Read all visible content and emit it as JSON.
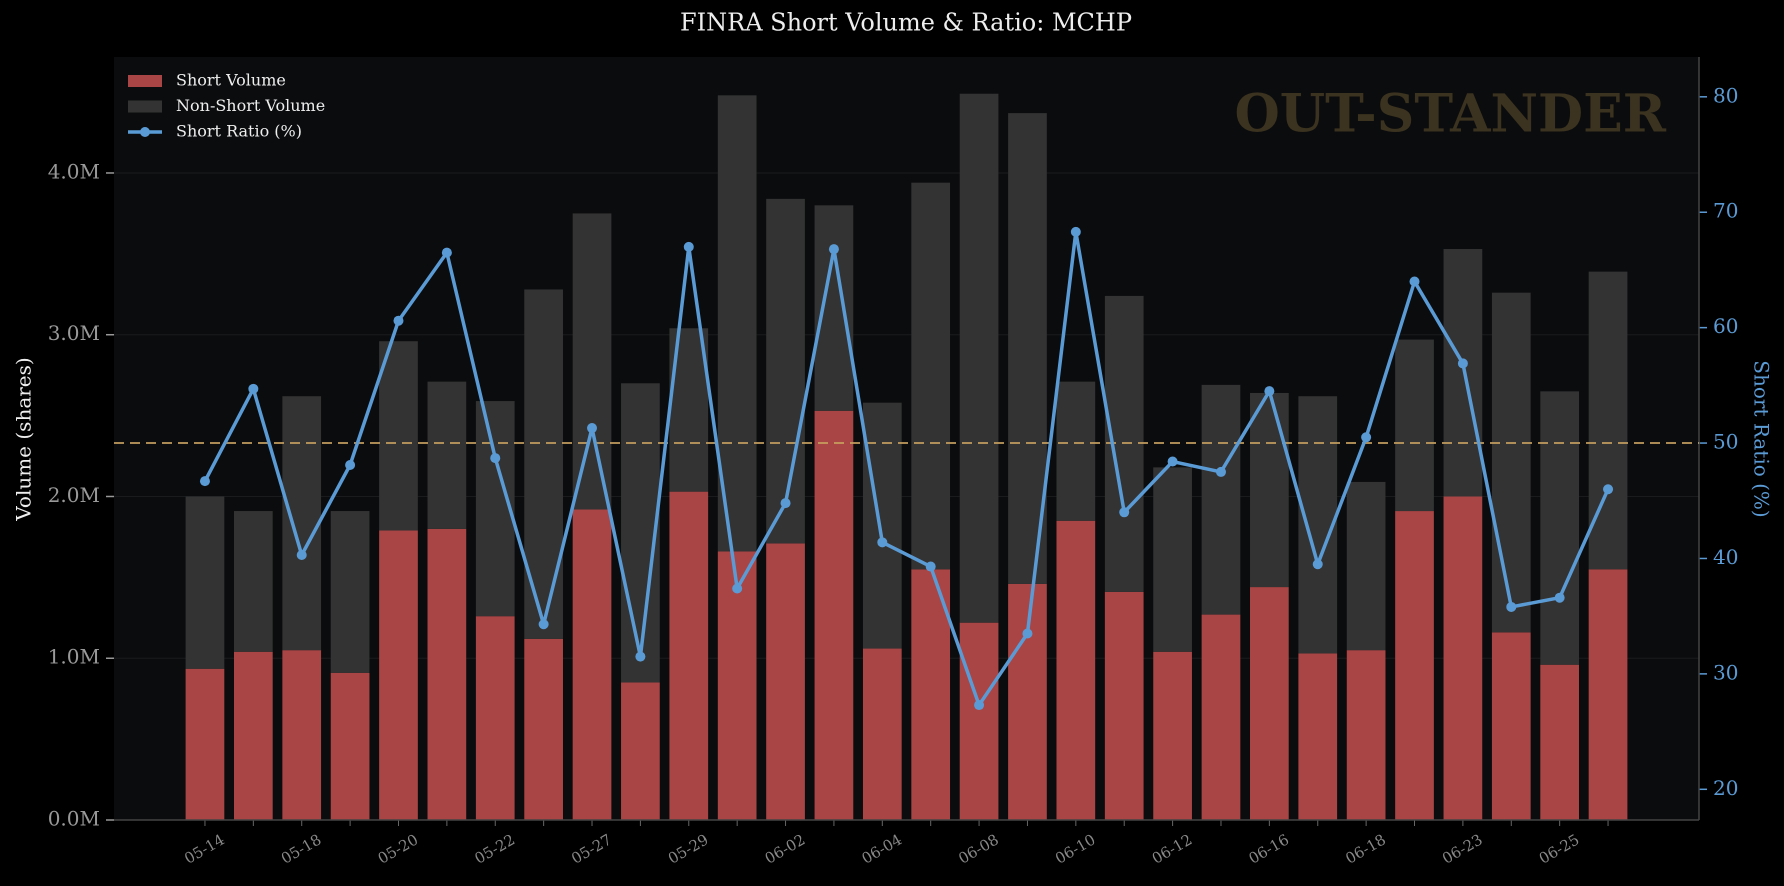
{
  "chart_data": {
    "type": "bar",
    "stacked": true,
    "title": "FINRA Short Volume & Ratio: MCHP",
    "watermark": "OUT-STANDER",
    "y_label": "Volume (shares)",
    "y2_label": "Short Ratio (%)",
    "categories": [
      "05-14",
      null,
      "05-18",
      null,
      "05-20",
      null,
      "05-22",
      null,
      "05-27",
      null,
      "05-29",
      null,
      "06-02",
      null,
      "06-04",
      null,
      "06-08",
      null,
      "06-10",
      null,
      "06-12",
      null,
      "06-16",
      null,
      "06-18",
      null,
      "06-23",
      null,
      "06-25",
      null
    ],
    "series": [
      {
        "name": "Short Volume",
        "type": "bar",
        "color": "#a94545",
        "values": [
          935000,
          1040000,
          1050000,
          910000,
          1790000,
          1800000,
          1260000,
          1120000,
          1920000,
          850000,
          2030000,
          1660000,
          1710000,
          2530000,
          1060000,
          1550000,
          1220000,
          1460000,
          1850000,
          1410000,
          1040000,
          1270000,
          1440000,
          1030000,
          1050000,
          1910000,
          2000000,
          1160000,
          960000,
          1550000
        ]
      },
      {
        "name": "Non-Short Volume",
        "type": "bar",
        "color": "#333333",
        "values": [
          1065000,
          870000,
          1570000,
          1000000,
          1170000,
          910000,
          1330000,
          2160000,
          1830000,
          1850000,
          1010000,
          2820000,
          2130000,
          1270000,
          1520000,
          2390000,
          3270000,
          2910000,
          860000,
          1830000,
          1140000,
          1420000,
          1200000,
          1590000,
          1040000,
          1060000,
          1530000,
          2100000,
          1690000,
          1840000
        ]
      },
      {
        "name": "Short Ratio (%)",
        "type": "line",
        "axis": "y2",
        "color": "#5b9bd5",
        "values": [
          46.7,
          54.7,
          40.3,
          48.1,
          60.6,
          66.5,
          48.7,
          34.3,
          51.3,
          31.5,
          67.0,
          37.4,
          44.8,
          66.8,
          41.4,
          39.3,
          27.3,
          33.5,
          68.3,
          44.0,
          48.4,
          47.5,
          54.5,
          39.5,
          50.5,
          64.0,
          56.9,
          35.8,
          36.6,
          46.0
        ]
      }
    ],
    "reference_line": {
      "value": 50,
      "axis": "y2",
      "color": "#c8a060"
    },
    "ylim": [
      0,
      4717000
    ],
    "yticks": [
      {
        "value": 0,
        "label": "0.0M"
      },
      {
        "value": 1000000,
        "label": "1.0M"
      },
      {
        "value": 2000000,
        "label": "2.0M"
      },
      {
        "value": 3000000,
        "label": "3.0M"
      },
      {
        "value": 4000000,
        "label": "4.0M"
      }
    ],
    "y2lim": [
      17.34,
      83.45
    ],
    "y2ticks": [
      20,
      30,
      40,
      50,
      60,
      70,
      80
    ],
    "grid": true,
    "legend": "upper left"
  }
}
